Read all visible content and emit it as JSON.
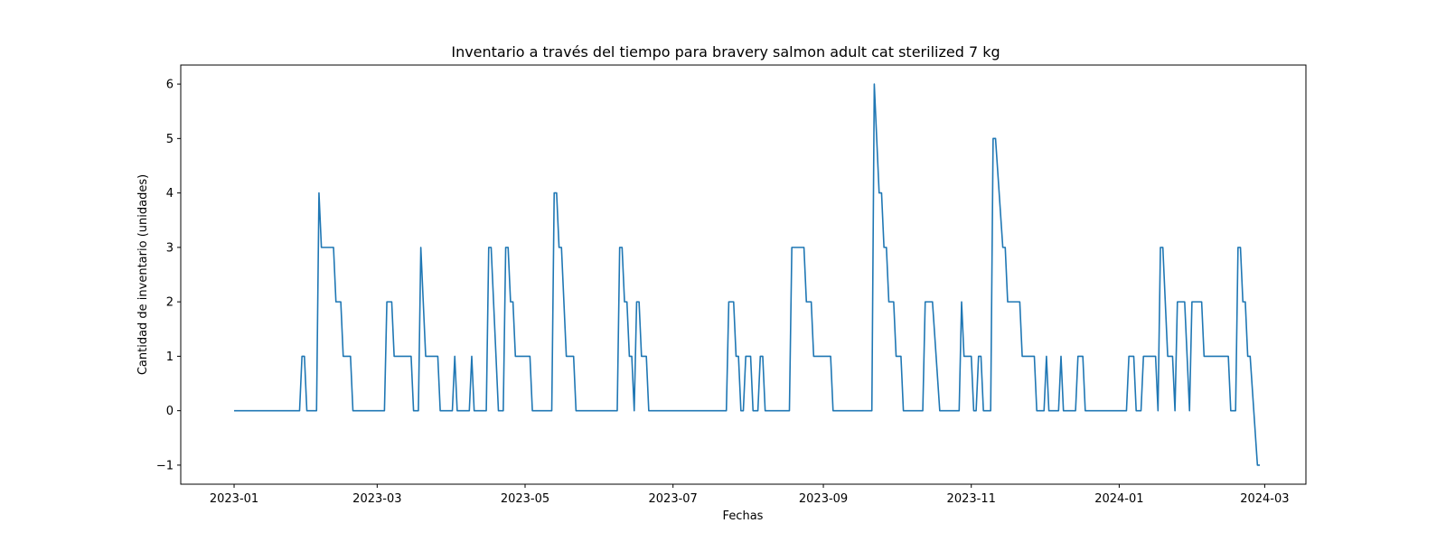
{
  "chart_data": {
    "type": "line",
    "title": "Inventario a través del tiempo para bravery salmon adult cat sterilized 7 kg",
    "xlabel": "Fechas",
    "ylabel": "Cantidad de inventario (unidades)",
    "xlim": [
      "2022-12-10",
      "2024-03-18"
    ],
    "ylim": [
      -1.35,
      6.35
    ],
    "y_ticks": [
      -1,
      0,
      1,
      2,
      3,
      4,
      5,
      6
    ],
    "x_ticks": [
      "2023-01",
      "2023-03",
      "2023-05",
      "2023-07",
      "2023-09",
      "2023-11",
      "2024-01",
      "2024-03"
    ],
    "grid": false,
    "color": "#1f77b4",
    "series": [
      {
        "points": [
          [
            "2023-01-01",
            0
          ],
          [
            "2023-01-28",
            0
          ],
          [
            "2023-01-29",
            1
          ],
          [
            "2023-01-30",
            1
          ],
          [
            "2023-01-31",
            0
          ],
          [
            "2023-02-04",
            0
          ],
          [
            "2023-02-05",
            4
          ],
          [
            "2023-02-06",
            3
          ],
          [
            "2023-02-11",
            3
          ],
          [
            "2023-02-12",
            2
          ],
          [
            "2023-02-14",
            2
          ],
          [
            "2023-02-15",
            1
          ],
          [
            "2023-02-18",
            1
          ],
          [
            "2023-02-19",
            0
          ],
          [
            "2023-03-04",
            0
          ],
          [
            "2023-03-05",
            2
          ],
          [
            "2023-03-07",
            2
          ],
          [
            "2023-03-08",
            1
          ],
          [
            "2023-03-15",
            1
          ],
          [
            "2023-03-16",
            0
          ],
          [
            "2023-03-18",
            0
          ],
          [
            "2023-03-19",
            3
          ],
          [
            "2023-03-21",
            1
          ],
          [
            "2023-03-26",
            1
          ],
          [
            "2023-03-27",
            0
          ],
          [
            "2023-04-01",
            0
          ],
          [
            "2023-04-02",
            1
          ],
          [
            "2023-04-03",
            0
          ],
          [
            "2023-04-08",
            0
          ],
          [
            "2023-04-09",
            1
          ],
          [
            "2023-04-10",
            0
          ],
          [
            "2023-04-15",
            0
          ],
          [
            "2023-04-16",
            3
          ],
          [
            "2023-04-17",
            3
          ],
          [
            "2023-04-20",
            0
          ],
          [
            "2023-04-22",
            0
          ],
          [
            "2023-04-23",
            3
          ],
          [
            "2023-04-24",
            3
          ],
          [
            "2023-04-25",
            2
          ],
          [
            "2023-04-26",
            2
          ],
          [
            "2023-04-27",
            1
          ],
          [
            "2023-05-03",
            1
          ],
          [
            "2023-05-04",
            0
          ],
          [
            "2023-05-12",
            0
          ],
          [
            "2023-05-13",
            4
          ],
          [
            "2023-05-14",
            4
          ],
          [
            "2023-05-15",
            3
          ],
          [
            "2023-05-16",
            3
          ],
          [
            "2023-05-18",
            1
          ],
          [
            "2023-05-21",
            1
          ],
          [
            "2023-05-22",
            0
          ],
          [
            "2023-06-08",
            0
          ],
          [
            "2023-06-09",
            3
          ],
          [
            "2023-06-10",
            3
          ],
          [
            "2023-06-11",
            2
          ],
          [
            "2023-06-12",
            2
          ],
          [
            "2023-06-13",
            1
          ],
          [
            "2023-06-14",
            1
          ],
          [
            "2023-06-15",
            0
          ],
          [
            "2023-06-16",
            2
          ],
          [
            "2023-06-17",
            2
          ],
          [
            "2023-06-18",
            1
          ],
          [
            "2023-06-20",
            1
          ],
          [
            "2023-06-21",
            0
          ],
          [
            "2023-07-23",
            0
          ],
          [
            "2023-07-24",
            2
          ],
          [
            "2023-07-26",
            2
          ],
          [
            "2023-07-27",
            1
          ],
          [
            "2023-07-28",
            1
          ],
          [
            "2023-07-29",
            0
          ],
          [
            "2023-07-30",
            0
          ],
          [
            "2023-07-31",
            1
          ],
          [
            "2023-08-02",
            1
          ],
          [
            "2023-08-03",
            0
          ],
          [
            "2023-08-05",
            0
          ],
          [
            "2023-08-06",
            1
          ],
          [
            "2023-08-07",
            1
          ],
          [
            "2023-08-08",
            0
          ],
          [
            "2023-08-18",
            0
          ],
          [
            "2023-08-19",
            3
          ],
          [
            "2023-08-24",
            3
          ],
          [
            "2023-08-25",
            2
          ],
          [
            "2023-08-27",
            2
          ],
          [
            "2023-08-28",
            1
          ],
          [
            "2023-09-04",
            1
          ],
          [
            "2023-09-05",
            0
          ],
          [
            "2023-09-21",
            0
          ],
          [
            "2023-09-22",
            6
          ],
          [
            "2023-09-24",
            4
          ],
          [
            "2023-09-25",
            4
          ],
          [
            "2023-09-26",
            3
          ],
          [
            "2023-09-27",
            3
          ],
          [
            "2023-09-28",
            2
          ],
          [
            "2023-09-30",
            2
          ],
          [
            "2023-10-01",
            1
          ],
          [
            "2023-10-03",
            1
          ],
          [
            "2023-10-04",
            0
          ],
          [
            "2023-10-12",
            0
          ],
          [
            "2023-10-13",
            2
          ],
          [
            "2023-10-16",
            2
          ],
          [
            "2023-10-19",
            0
          ],
          [
            "2023-10-27",
            0
          ],
          [
            "2023-10-28",
            2
          ],
          [
            "2023-10-29",
            1
          ],
          [
            "2023-11-01",
            1
          ],
          [
            "2023-11-02",
            0
          ],
          [
            "2023-11-03",
            0
          ],
          [
            "2023-11-04",
            1
          ],
          [
            "2023-11-05",
            1
          ],
          [
            "2023-11-06",
            0
          ],
          [
            "2023-11-09",
            0
          ],
          [
            "2023-11-10",
            5
          ],
          [
            "2023-11-11",
            5
          ],
          [
            "2023-11-14",
            3
          ],
          [
            "2023-11-15",
            3
          ],
          [
            "2023-11-16",
            2
          ],
          [
            "2023-11-21",
            2
          ],
          [
            "2023-11-22",
            1
          ],
          [
            "2023-11-27",
            1
          ],
          [
            "2023-11-28",
            0
          ],
          [
            "2023-12-01",
            0
          ],
          [
            "2023-12-02",
            1
          ],
          [
            "2023-12-03",
            0
          ],
          [
            "2023-12-07",
            0
          ],
          [
            "2023-12-08",
            1
          ],
          [
            "2023-12-09",
            0
          ],
          [
            "2023-12-14",
            0
          ],
          [
            "2023-12-15",
            1
          ],
          [
            "2023-12-17",
            1
          ],
          [
            "2023-12-18",
            0
          ],
          [
            "2024-01-04",
            0
          ],
          [
            "2024-01-05",
            1
          ],
          [
            "2024-01-07",
            1
          ],
          [
            "2024-01-08",
            0
          ],
          [
            "2024-01-10",
            0
          ],
          [
            "2024-01-11",
            1
          ],
          [
            "2024-01-16",
            1
          ],
          [
            "2024-01-17",
            0
          ],
          [
            "2024-01-18",
            3
          ],
          [
            "2024-01-19",
            3
          ],
          [
            "2024-01-21",
            1
          ],
          [
            "2024-01-23",
            1
          ],
          [
            "2024-01-24",
            0
          ],
          [
            "2024-01-25",
            2
          ],
          [
            "2024-01-28",
            2
          ],
          [
            "2024-01-30",
            0
          ],
          [
            "2024-01-31",
            2
          ],
          [
            "2024-02-04",
            2
          ],
          [
            "2024-02-05",
            1
          ],
          [
            "2024-02-15",
            1
          ],
          [
            "2024-02-16",
            0
          ],
          [
            "2024-02-18",
            0
          ],
          [
            "2024-02-19",
            3
          ],
          [
            "2024-02-20",
            3
          ],
          [
            "2024-02-21",
            2
          ],
          [
            "2024-02-22",
            2
          ],
          [
            "2024-02-23",
            1
          ],
          [
            "2024-02-24",
            1
          ],
          [
            "2024-02-27",
            -1
          ],
          [
            "2024-02-28",
            -1
          ]
        ]
      }
    ]
  }
}
